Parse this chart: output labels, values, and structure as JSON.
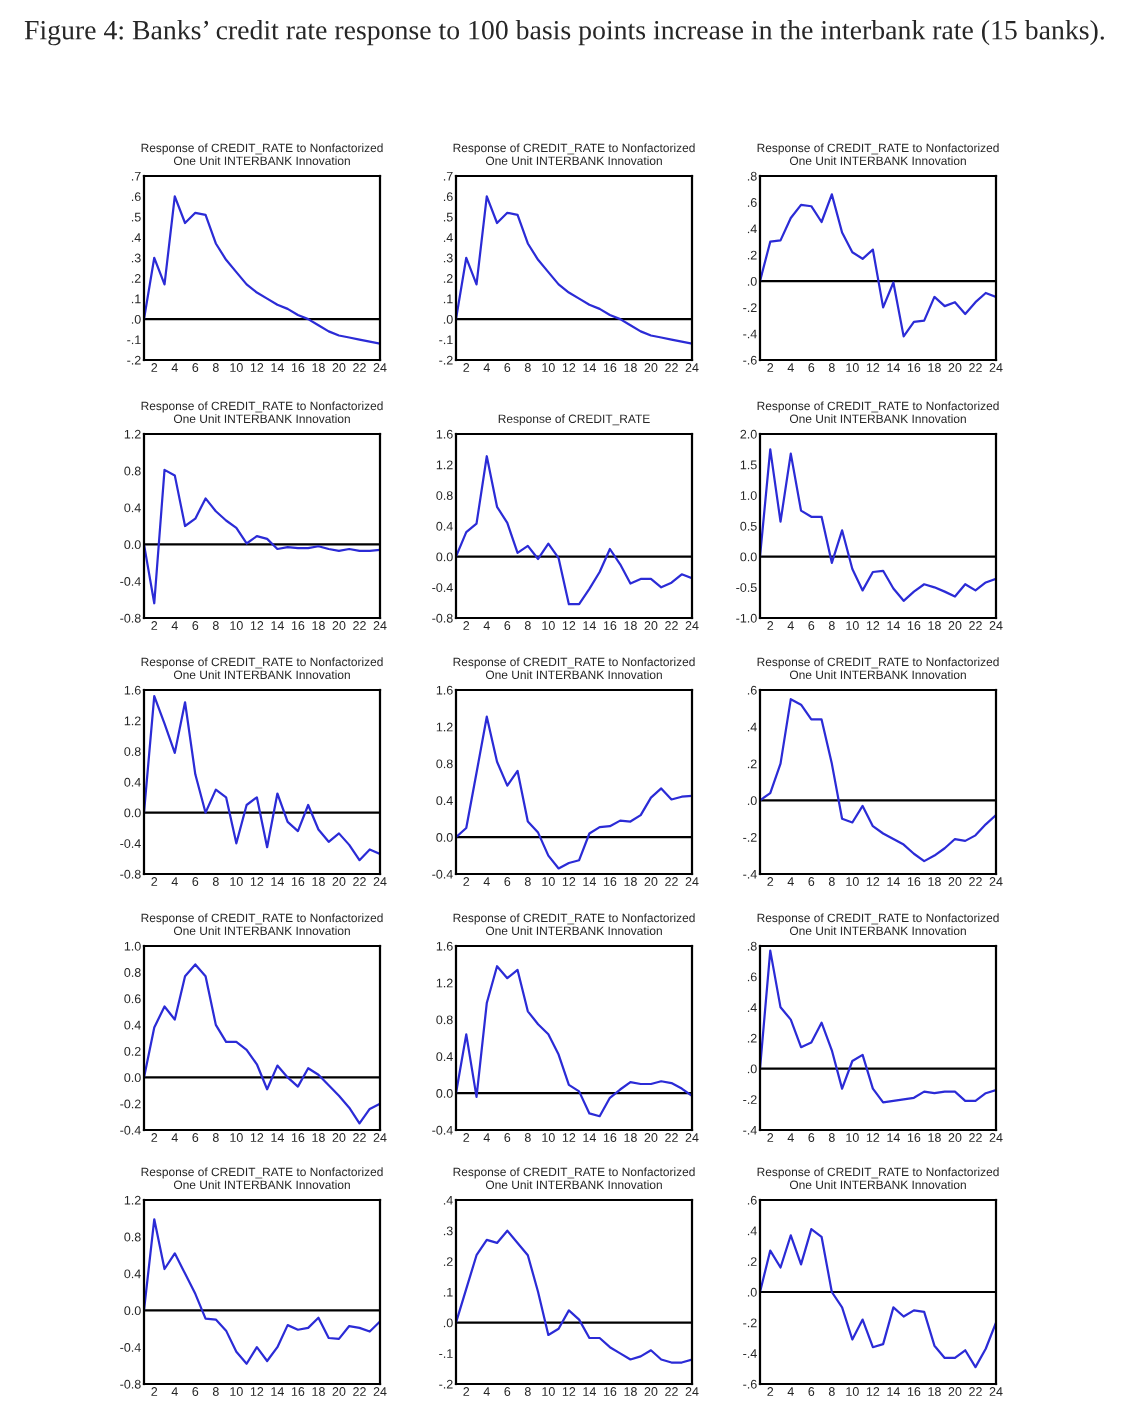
{
  "chart_data": [
    {
      "type": "line",
      "title": "Response of CREDIT_RATE to Nonfactorized\nOne Unit INTERBANK Innovation",
      "annotations": [
        "Figure 4: Banks’ credit rate response to 100 basis points increase in the interbank rate (15 banks)."
      ],
      "x": [
        1,
        2,
        3,
        4,
        5,
        6,
        7,
        8,
        9,
        10,
        11,
        12,
        13,
        14,
        15,
        16,
        17,
        18,
        19,
        20,
        21,
        22,
        23,
        24
      ],
      "series": [
        {
          "color": "#2b2bd6",
          "values": [
            0.0,
            0.3,
            0.17,
            0.6,
            0.47,
            0.52,
            0.51,
            0.37,
            0.29,
            0.23,
            0.17,
            0.13,
            0.1,
            0.07,
            0.05,
            0.02,
            0.0,
            -0.03,
            -0.06,
            -0.08,
            -0.09,
            -0.1,
            -0.11,
            -0.12
          ]
        }
      ],
      "xlim": [
        1,
        24
      ],
      "xticks": [
        2,
        4,
        6,
        8,
        10,
        12,
        14,
        16,
        18,
        20,
        22,
        24
      ],
      "ylim": [
        -0.2,
        0.7
      ],
      "yticks": [
        {
          "value": -0.2,
          "label": "-.2"
        },
        {
          "value": -0.1,
          "label": "-.1"
        },
        {
          "value": 0,
          "label": ".0"
        },
        {
          "value": 0.1,
          "label": ".1"
        },
        {
          "value": 0.2,
          "label": ".2"
        },
        {
          "value": 0.3,
          "label": ".3"
        },
        {
          "value": 0.4,
          "label": ".4"
        },
        {
          "value": 0.5,
          "label": ".5"
        },
        {
          "value": 0.6,
          "label": ".6"
        },
        {
          "value": 0.7,
          "label": ".7"
        }
      ],
      "ref_lines": [
        {
          "axis": "y",
          "value": 0,
          "color": "#000000"
        }
      ]
    },
    {
      "type": "line",
      "title": "Response of CREDIT_RATE to Nonfactorized\nOne Unit INTERBANK Innovation",
      "x": [
        1,
        2,
        3,
        4,
        5,
        6,
        7,
        8,
        9,
        10,
        11,
        12,
        13,
        14,
        15,
        16,
        17,
        18,
        19,
        20,
        21,
        22,
        23,
        24
      ],
      "series": [
        {
          "color": "#2b2bd6",
          "values": [
            0.0,
            0.3,
            0.17,
            0.6,
            0.47,
            0.52,
            0.51,
            0.37,
            0.29,
            0.23,
            0.17,
            0.13,
            0.1,
            0.07,
            0.05,
            0.02,
            0.0,
            -0.03,
            -0.06,
            -0.08,
            -0.09,
            -0.1,
            -0.11,
            -0.12
          ]
        }
      ],
      "xlim": [
        1,
        24
      ],
      "xticks": [
        2,
        4,
        6,
        8,
        10,
        12,
        14,
        16,
        18,
        20,
        22,
        24
      ],
      "ylim": [
        -0.2,
        0.7
      ],
      "yticks": [
        {
          "value": -0.2,
          "label": "-.2"
        },
        {
          "value": -0.1,
          "label": "-.1"
        },
        {
          "value": 0,
          "label": ".0"
        },
        {
          "value": 0.1,
          "label": ".1"
        },
        {
          "value": 0.2,
          "label": ".2"
        },
        {
          "value": 0.3,
          "label": ".3"
        },
        {
          "value": 0.4,
          "label": ".4"
        },
        {
          "value": 0.5,
          "label": ".5"
        },
        {
          "value": 0.6,
          "label": ".6"
        },
        {
          "value": 0.7,
          "label": ".7"
        }
      ],
      "ref_lines": [
        {
          "axis": "y",
          "value": 0,
          "color": "#000000"
        }
      ]
    },
    {
      "type": "line",
      "title": "Response of CREDIT_RATE to Nonfactorized\nOne Unit INTERBANK Innovation",
      "x": [
        1,
        2,
        3,
        4,
        5,
        6,
        7,
        8,
        9,
        10,
        11,
        12,
        13,
        14,
        15,
        16,
        17,
        18,
        19,
        20,
        21,
        22,
        23,
        24
      ],
      "series": [
        {
          "color": "#2b2bd6",
          "values": [
            0.0,
            0.3,
            0.31,
            0.48,
            0.58,
            0.57,
            0.45,
            0.66,
            0.37,
            0.22,
            0.17,
            0.24,
            -0.2,
            -0.01,
            -0.42,
            -0.31,
            -0.3,
            -0.12,
            -0.19,
            -0.16,
            -0.25,
            -0.16,
            -0.09,
            -0.12
          ]
        }
      ],
      "xlim": [
        1,
        24
      ],
      "xticks": [
        2,
        4,
        6,
        8,
        10,
        12,
        14,
        16,
        18,
        20,
        22,
        24
      ],
      "ylim": [
        -0.6,
        0.8
      ],
      "yticks": [
        {
          "value": -0.6,
          "label": "-.6"
        },
        {
          "value": -0.4,
          "label": "-.4"
        },
        {
          "value": -0.2,
          "label": "-.2"
        },
        {
          "value": 0,
          "label": ".0"
        },
        {
          "value": 0.2,
          "label": ".2"
        },
        {
          "value": 0.4,
          "label": ".4"
        },
        {
          "value": 0.6,
          "label": ".6"
        },
        {
          "value": 0.8,
          "label": ".8"
        }
      ],
      "ref_lines": [
        {
          "axis": "y",
          "value": 0,
          "color": "#000000"
        }
      ]
    },
    {
      "type": "line",
      "title": "Response of CREDIT_RATE to Nonfactorized\nOne Unit INTERBANK Innovation",
      "x": [
        1,
        2,
        3,
        4,
        5,
        6,
        7,
        8,
        9,
        10,
        11,
        12,
        13,
        14,
        15,
        16,
        17,
        18,
        19,
        20,
        21,
        22,
        23,
        24
      ],
      "series": [
        {
          "color": "#2b2bd6",
          "values": [
            0.0,
            -0.64,
            0.81,
            0.75,
            0.2,
            0.28,
            0.5,
            0.36,
            0.26,
            0.18,
            0.01,
            0.09,
            0.06,
            -0.05,
            -0.03,
            -0.04,
            -0.04,
            -0.02,
            -0.05,
            -0.07,
            -0.05,
            -0.07,
            -0.07,
            -0.06
          ]
        }
      ],
      "xlim": [
        1,
        24
      ],
      "xticks": [
        2,
        4,
        6,
        8,
        10,
        12,
        14,
        16,
        18,
        20,
        22,
        24
      ],
      "ylim": [
        -0.8,
        1.2
      ],
      "yticks": [
        {
          "value": -0.8,
          "label": "-0.8"
        },
        {
          "value": -0.4,
          "label": "-0.4"
        },
        {
          "value": 0,
          "label": "0.0"
        },
        {
          "value": 0.4,
          "label": "0.4"
        },
        {
          "value": 0.8,
          "label": "0.8"
        },
        {
          "value": 1.2,
          "label": "1.2"
        }
      ],
      "ref_lines": [
        {
          "axis": "y",
          "value": 0,
          "color": "#000000"
        }
      ]
    },
    {
      "type": "line",
      "title": "Response of CREDIT_RATE",
      "x": [
        1,
        2,
        3,
        4,
        5,
        6,
        7,
        8,
        9,
        10,
        11,
        12,
        13,
        14,
        15,
        16,
        17,
        18,
        19,
        20,
        21,
        22,
        23,
        24
      ],
      "series": [
        {
          "color": "#2b2bd6",
          "values": [
            0.0,
            0.32,
            0.43,
            1.31,
            0.65,
            0.44,
            0.05,
            0.14,
            -0.03,
            0.17,
            -0.02,
            -0.62,
            -0.62,
            -0.42,
            -0.2,
            0.1,
            -0.1,
            -0.35,
            -0.29,
            -0.29,
            -0.4,
            -0.34,
            -0.23,
            -0.28
          ]
        }
      ],
      "xlim": [
        1,
        24
      ],
      "xticks": [
        2,
        4,
        6,
        8,
        10,
        12,
        14,
        16,
        18,
        20,
        22,
        24
      ],
      "ylim": [
        -0.8,
        1.6
      ],
      "yticks": [
        {
          "value": -0.8,
          "label": "-0.8"
        },
        {
          "value": -0.4,
          "label": "-0.4"
        },
        {
          "value": 0,
          "label": "0.0"
        },
        {
          "value": 0.4,
          "label": "0.4"
        },
        {
          "value": 0.8,
          "label": "0.8"
        },
        {
          "value": 1.2,
          "label": "1.2"
        },
        {
          "value": 1.6,
          "label": "1.6"
        }
      ],
      "ref_lines": [
        {
          "axis": "y",
          "value": 0,
          "color": "#000000"
        }
      ]
    },
    {
      "type": "line",
      "title": "Response of CREDIT_RATE to Nonfactorized\nOne Unit INTERBANK Innovation",
      "x": [
        1,
        2,
        3,
        4,
        5,
        6,
        7,
        8,
        9,
        10,
        11,
        12,
        13,
        14,
        15,
        16,
        17,
        18,
        19,
        20,
        21,
        22,
        23,
        24
      ],
      "series": [
        {
          "color": "#2b2bd6",
          "values": [
            0.0,
            1.75,
            0.57,
            1.68,
            0.75,
            0.65,
            0.65,
            -0.1,
            0.43,
            -0.2,
            -0.55,
            -0.25,
            -0.23,
            -0.52,
            -0.72,
            -0.57,
            -0.45,
            -0.5,
            -0.57,
            -0.65,
            -0.45,
            -0.55,
            -0.42,
            -0.36
          ]
        }
      ],
      "xlim": [
        1,
        24
      ],
      "xticks": [
        2,
        4,
        6,
        8,
        10,
        12,
        14,
        16,
        18,
        20,
        22,
        24
      ],
      "ylim": [
        -1.0,
        2.0
      ],
      "yticks": [
        {
          "value": -1.0,
          "label": "-1.0"
        },
        {
          "value": -0.5,
          "label": "-0.5"
        },
        {
          "value": 0,
          "label": "0.0"
        },
        {
          "value": 0.5,
          "label": "0.5"
        },
        {
          "value": 1.0,
          "label": "1.0"
        },
        {
          "value": 1.5,
          "label": "1.5"
        },
        {
          "value": 2.0,
          "label": "2.0"
        }
      ],
      "ref_lines": [
        {
          "axis": "y",
          "value": 0,
          "color": "#000000"
        }
      ]
    },
    {
      "type": "line",
      "title": "Response of CREDIT_RATE to Nonfactorized\nOne Unit INTERBANK Innovation",
      "x": [
        1,
        2,
        3,
        4,
        5,
        6,
        7,
        8,
        9,
        10,
        11,
        12,
        13,
        14,
        15,
        16,
        17,
        18,
        19,
        20,
        21,
        22,
        23,
        24
      ],
      "series": [
        {
          "color": "#2b2bd6",
          "values": [
            0.0,
            1.52,
            1.16,
            0.78,
            1.44,
            0.5,
            0.0,
            0.3,
            0.2,
            -0.4,
            0.1,
            0.2,
            -0.45,
            0.25,
            -0.12,
            -0.24,
            0.1,
            -0.22,
            -0.38,
            -0.27,
            -0.42,
            -0.62,
            -0.48,
            -0.54
          ]
        }
      ],
      "xlim": [
        1,
        24
      ],
      "xticks": [
        2,
        4,
        6,
        8,
        10,
        12,
        14,
        16,
        18,
        20,
        22,
        24
      ],
      "ylim": [
        -0.8,
        1.6
      ],
      "yticks": [
        {
          "value": -0.8,
          "label": "-0.8"
        },
        {
          "value": -0.4,
          "label": "-0.4"
        },
        {
          "value": 0,
          "label": "0.0"
        },
        {
          "value": 0.4,
          "label": "0.4"
        },
        {
          "value": 0.8,
          "label": "0.8"
        },
        {
          "value": 1.2,
          "label": "1.2"
        },
        {
          "value": 1.6,
          "label": "1.6"
        }
      ],
      "ref_lines": [
        {
          "axis": "y",
          "value": 0,
          "color": "#000000"
        }
      ]
    },
    {
      "type": "line",
      "title": "Response of CREDIT_RATE to Nonfactorized\nOne Unit INTERBANK Innovation",
      "x": [
        1,
        2,
        3,
        4,
        5,
        6,
        7,
        8,
        9,
        10,
        11,
        12,
        13,
        14,
        15,
        16,
        17,
        18,
        19,
        20,
        21,
        22,
        23,
        24
      ],
      "series": [
        {
          "color": "#2b2bd6",
          "values": [
            0.0,
            0.1,
            0.7,
            1.31,
            0.82,
            0.56,
            0.72,
            0.17,
            0.05,
            -0.2,
            -0.34,
            -0.28,
            -0.25,
            0.04,
            0.11,
            0.12,
            0.18,
            0.17,
            0.24,
            0.43,
            0.53,
            0.41,
            0.44,
            0.45
          ]
        }
      ],
      "xlim": [
        1,
        24
      ],
      "xticks": [
        2,
        4,
        6,
        8,
        10,
        12,
        14,
        16,
        18,
        20,
        22,
        24
      ],
      "ylim": [
        -0.4,
        1.6
      ],
      "yticks": [
        {
          "value": -0.4,
          "label": "-0.4"
        },
        {
          "value": 0,
          "label": "0.0"
        },
        {
          "value": 0.4,
          "label": "0.4"
        },
        {
          "value": 0.8,
          "label": "0.8"
        },
        {
          "value": 1.2,
          "label": "1.2"
        },
        {
          "value": 1.6,
          "label": "1.6"
        }
      ],
      "ref_lines": [
        {
          "axis": "y",
          "value": 0,
          "color": "#000000"
        }
      ]
    },
    {
      "type": "line",
      "title": "Response of CREDIT_RATE to Nonfactorized\nOne Unit INTERBANK Innovation",
      "x": [
        1,
        2,
        3,
        4,
        5,
        6,
        7,
        8,
        9,
        10,
        11,
        12,
        13,
        14,
        15,
        16,
        17,
        18,
        19,
        20,
        21,
        22,
        23,
        24
      ],
      "series": [
        {
          "color": "#2b2bd6",
          "values": [
            0.0,
            0.04,
            0.2,
            0.55,
            0.52,
            0.44,
            0.44,
            0.2,
            -0.1,
            -0.12,
            -0.03,
            -0.14,
            -0.18,
            -0.21,
            -0.24,
            -0.29,
            -0.33,
            -0.3,
            -0.26,
            -0.21,
            -0.22,
            -0.19,
            -0.13,
            -0.08
          ]
        }
      ],
      "xlim": [
        1,
        24
      ],
      "xticks": [
        2,
        4,
        6,
        8,
        10,
        12,
        14,
        16,
        18,
        20,
        22,
        24
      ],
      "ylim": [
        -0.4,
        0.6
      ],
      "yticks": [
        {
          "value": -0.4,
          "label": "-.4"
        },
        {
          "value": -0.2,
          "label": "-.2"
        },
        {
          "value": 0,
          "label": ".0"
        },
        {
          "value": 0.2,
          "label": ".2"
        },
        {
          "value": 0.4,
          "label": ".4"
        },
        {
          "value": 0.6,
          "label": ".6"
        }
      ],
      "ref_lines": [
        {
          "axis": "y",
          "value": 0,
          "color": "#000000"
        }
      ]
    },
    {
      "type": "line",
      "title": "Response of CREDIT_RATE to Nonfactorized\nOne Unit INTERBANK Innovation",
      "x": [
        1,
        2,
        3,
        4,
        5,
        6,
        7,
        8,
        9,
        10,
        11,
        12,
        13,
        14,
        15,
        16,
        17,
        18,
        19,
        20,
        21,
        22,
        23,
        24
      ],
      "series": [
        {
          "color": "#2b2bd6",
          "values": [
            0.0,
            0.38,
            0.54,
            0.44,
            0.77,
            0.86,
            0.77,
            0.4,
            0.27,
            0.27,
            0.21,
            0.1,
            -0.09,
            0.09,
            0.0,
            -0.07,
            0.07,
            0.02,
            -0.06,
            -0.14,
            -0.23,
            -0.35,
            -0.24,
            -0.2
          ]
        }
      ],
      "xlim": [
        1,
        24
      ],
      "xticks": [
        2,
        4,
        6,
        8,
        10,
        12,
        14,
        16,
        18,
        20,
        22,
        24
      ],
      "ylim": [
        -0.4,
        1.0
      ],
      "yticks": [
        {
          "value": -0.4,
          "label": "-0.4"
        },
        {
          "value": -0.2,
          "label": "-0.2"
        },
        {
          "value": 0,
          "label": "0.0"
        },
        {
          "value": 0.2,
          "label": "0.2"
        },
        {
          "value": 0.4,
          "label": "0.4"
        },
        {
          "value": 0.6,
          "label": "0.6"
        },
        {
          "value": 0.8,
          "label": "0.8"
        },
        {
          "value": 1.0,
          "label": "1.0"
        }
      ],
      "ref_lines": [
        {
          "axis": "y",
          "value": 0,
          "color": "#000000"
        }
      ]
    },
    {
      "type": "line",
      "title": "Response of CREDIT_RATE to Nonfactorized\nOne Unit INTERBANK Innovation",
      "x": [
        1,
        2,
        3,
        4,
        5,
        6,
        7,
        8,
        9,
        10,
        11,
        12,
        13,
        14,
        15,
        16,
        17,
        18,
        19,
        20,
        21,
        22,
        23,
        24
      ],
      "series": [
        {
          "color": "#2b2bd6",
          "values": [
            0.0,
            0.64,
            -0.04,
            0.98,
            1.38,
            1.25,
            1.34,
            0.89,
            0.75,
            0.64,
            0.42,
            0.09,
            0.02,
            -0.22,
            -0.25,
            -0.05,
            0.04,
            0.12,
            0.1,
            0.1,
            0.13,
            0.11,
            0.05,
            -0.03
          ]
        }
      ],
      "xlim": [
        1,
        24
      ],
      "xticks": [
        2,
        4,
        6,
        8,
        10,
        12,
        14,
        16,
        18,
        20,
        22,
        24
      ],
      "ylim": [
        -0.4,
        1.6
      ],
      "yticks": [
        {
          "value": -0.4,
          "label": "-0.4"
        },
        {
          "value": 0,
          "label": "0.0"
        },
        {
          "value": 0.4,
          "label": "0.4"
        },
        {
          "value": 0.8,
          "label": "0.8"
        },
        {
          "value": 1.2,
          "label": "1.2"
        },
        {
          "value": 1.6,
          "label": "1.6"
        }
      ],
      "ref_lines": [
        {
          "axis": "y",
          "value": 0,
          "color": "#000000"
        }
      ]
    },
    {
      "type": "line",
      "title": "Response of CREDIT_RATE to Nonfactorized\nOne Unit INTERBANK Innovation",
      "x": [
        1,
        2,
        3,
        4,
        5,
        6,
        7,
        8,
        9,
        10,
        11,
        12,
        13,
        14,
        15,
        16,
        17,
        18,
        19,
        20,
        21,
        22,
        23,
        24
      ],
      "series": [
        {
          "color": "#2b2bd6",
          "values": [
            0.0,
            0.77,
            0.4,
            0.32,
            0.14,
            0.17,
            0.3,
            0.12,
            -0.13,
            0.05,
            0.09,
            -0.13,
            -0.22,
            -0.21,
            -0.2,
            -0.19,
            -0.15,
            -0.16,
            -0.15,
            -0.15,
            -0.21,
            -0.21,
            -0.16,
            -0.14
          ]
        }
      ],
      "xlim": [
        1,
        24
      ],
      "xticks": [
        2,
        4,
        6,
        8,
        10,
        12,
        14,
        16,
        18,
        20,
        22,
        24
      ],
      "ylim": [
        -0.4,
        0.8
      ],
      "yticks": [
        {
          "value": -0.4,
          "label": "-.4"
        },
        {
          "value": -0.2,
          "label": "-.2"
        },
        {
          "value": 0,
          "label": ".0"
        },
        {
          "value": 0.2,
          "label": ".2"
        },
        {
          "value": 0.4,
          "label": ".4"
        },
        {
          "value": 0.6,
          "label": ".6"
        },
        {
          "value": 0.8,
          "label": ".8"
        }
      ],
      "ref_lines": [
        {
          "axis": "y",
          "value": 0,
          "color": "#000000"
        }
      ]
    },
    {
      "type": "line",
      "title": "Response of CREDIT_RATE to Nonfactorized\nOne Unit INTERBANK Innovation",
      "x": [
        1,
        2,
        3,
        4,
        5,
        6,
        7,
        8,
        9,
        10,
        11,
        12,
        13,
        14,
        15,
        16,
        17,
        18,
        19,
        20,
        21,
        22,
        23,
        24
      ],
      "series": [
        {
          "color": "#2b2bd6",
          "values": [
            0.0,
            0.99,
            0.45,
            0.62,
            0.4,
            0.18,
            -0.09,
            -0.1,
            -0.22,
            -0.45,
            -0.58,
            -0.4,
            -0.55,
            -0.4,
            -0.16,
            -0.21,
            -0.19,
            -0.08,
            -0.3,
            -0.31,
            -0.17,
            -0.19,
            -0.23,
            -0.12
          ]
        }
      ],
      "xlim": [
        1,
        24
      ],
      "xticks": [
        2,
        4,
        6,
        8,
        10,
        12,
        14,
        16,
        18,
        20,
        22,
        24
      ],
      "ylim": [
        -0.8,
        1.2
      ],
      "yticks": [
        {
          "value": -0.8,
          "label": "-0.8"
        },
        {
          "value": -0.4,
          "label": "-0.4"
        },
        {
          "value": 0,
          "label": "0.0"
        },
        {
          "value": 0.4,
          "label": "0.4"
        },
        {
          "value": 0.8,
          "label": "0.8"
        },
        {
          "value": 1.2,
          "label": "1.2"
        }
      ],
      "ref_lines": [
        {
          "axis": "y",
          "value": 0,
          "color": "#000000"
        }
      ]
    },
    {
      "type": "line",
      "title": "Response of CREDIT_RATE to Nonfactorized\nOne Unit INTERBANK Innovation",
      "x": [
        1,
        2,
        3,
        4,
        5,
        6,
        7,
        8,
        9,
        10,
        11,
        12,
        13,
        14,
        15,
        16,
        17,
        18,
        19,
        20,
        21,
        22,
        23,
        24
      ],
      "series": [
        {
          "color": "#2b2bd6",
          "values": [
            0.0,
            0.11,
            0.22,
            0.27,
            0.26,
            0.3,
            0.26,
            0.22,
            0.1,
            -0.04,
            -0.02,
            0.04,
            0.01,
            -0.05,
            -0.05,
            -0.08,
            -0.1,
            -0.12,
            -0.11,
            -0.09,
            -0.12,
            -0.13,
            -0.13,
            -0.12
          ]
        }
      ],
      "xlim": [
        1,
        24
      ],
      "xticks": [
        2,
        4,
        6,
        8,
        10,
        12,
        14,
        16,
        18,
        20,
        22,
        24
      ],
      "ylim": [
        -0.2,
        0.4
      ],
      "yticks": [
        {
          "value": -0.2,
          "label": "-.2"
        },
        {
          "value": -0.1,
          "label": "-.1"
        },
        {
          "value": 0,
          "label": ".0"
        },
        {
          "value": 0.1,
          "label": ".1"
        },
        {
          "value": 0.2,
          "label": ".2"
        },
        {
          "value": 0.3,
          "label": ".3"
        },
        {
          "value": 0.4,
          "label": ".4"
        }
      ],
      "ref_lines": [
        {
          "axis": "y",
          "value": 0,
          "color": "#000000"
        }
      ]
    },
    {
      "type": "line",
      "title": "Response of CREDIT_RATE to Nonfactorized\nOne Unit INTERBANK Innovation",
      "x": [
        1,
        2,
        3,
        4,
        5,
        6,
        7,
        8,
        9,
        10,
        11,
        12,
        13,
        14,
        15,
        16,
        17,
        18,
        19,
        20,
        21,
        22,
        23,
        24
      ],
      "series": [
        {
          "color": "#2b2bd6",
          "values": [
            0.0,
            0.27,
            0.16,
            0.37,
            0.18,
            0.41,
            0.36,
            0.0,
            -0.1,
            -0.31,
            -0.18,
            -0.36,
            -0.34,
            -0.1,
            -0.16,
            -0.12,
            -0.13,
            -0.35,
            -0.43,
            -0.43,
            -0.38,
            -0.49,
            -0.37,
            -0.2
          ]
        }
      ],
      "xlim": [
        1,
        24
      ],
      "xticks": [
        2,
        4,
        6,
        8,
        10,
        12,
        14,
        16,
        18,
        20,
        22,
        24
      ],
      "ylim": [
        -0.6,
        0.6
      ],
      "yticks": [
        {
          "value": -0.6,
          "label": "-.6"
        },
        {
          "value": -0.4,
          "label": "-.4"
        },
        {
          "value": -0.2,
          "label": "-.2"
        },
        {
          "value": 0,
          "label": ".0"
        },
        {
          "value": 0.2,
          "label": ".2"
        },
        {
          "value": 0.4,
          "label": ".4"
        },
        {
          "value": 0.6,
          "label": ".6"
        }
      ],
      "ref_lines": [
        {
          "axis": "y",
          "value": 0,
          "color": "#000000"
        }
      ]
    }
  ]
}
